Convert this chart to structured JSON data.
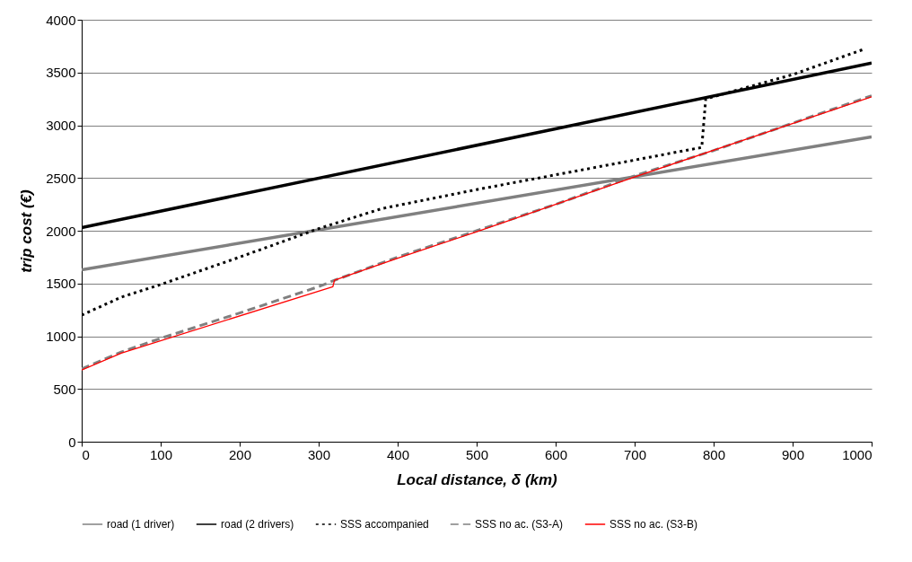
{
  "chart_data": {
    "type": "line",
    "xlabel": "Local distance, δ (km)",
    "ylabel": "trip cost (€)",
    "xlim": [
      0,
      1000
    ],
    "xticks": [
      0,
      100,
      200,
      300,
      400,
      500,
      600,
      700,
      800,
      900,
      1000
    ],
    "ylim": [
      0,
      4000
    ],
    "yticks": [
      0,
      500,
      1000,
      1500,
      2000,
      2500,
      3000,
      3500,
      4000
    ],
    "grid": "y",
    "legend": "bottom",
    "series": [
      {
        "name": "road (1 driver)",
        "color": "#808080",
        "line_style": "solid",
        "x": [
          0,
          1000
        ],
        "values": [
          1630,
          2890
        ]
      },
      {
        "name": "road (2 drivers)",
        "color": "#000000",
        "line_style": "solid",
        "x": [
          0,
          1000
        ],
        "values": [
          2030,
          3590
        ]
      },
      {
        "name": "SSS accompanied",
        "color": "#000000",
        "line_style": "dotted",
        "x": [
          0,
          50,
          100,
          200,
          300,
          380,
          500,
          600,
          700,
          785,
          790,
          900,
          990
        ],
        "values": [
          1200,
          1370,
          1490,
          1750,
          2020,
          2210,
          2390,
          2530,
          2670,
          2790,
          3250,
          3480,
          3720
        ]
      },
      {
        "name": "SSS no ac. (S3-A)",
        "color": "#808080",
        "line_style": "dashed",
        "x": [
          0,
          50,
          100,
          200,
          300,
          320,
          400,
          500,
          600,
          700,
          800,
          900,
          1000
        ],
        "values": [
          690,
          850,
          980,
          1220,
          1470,
          1530,
          1750,
          2000,
          2250,
          2520,
          2760,
          3020,
          3280
        ]
      },
      {
        "name": "SSS no ac. (S3-B)",
        "color": "#ff0000",
        "line_style": "solid",
        "x": [
          0,
          50,
          318,
          320,
          400,
          500,
          700,
          1000
        ],
        "values": [
          680,
          840,
          1470,
          1530,
          1740,
          1990,
          2510,
          3270
        ]
      }
    ]
  }
}
